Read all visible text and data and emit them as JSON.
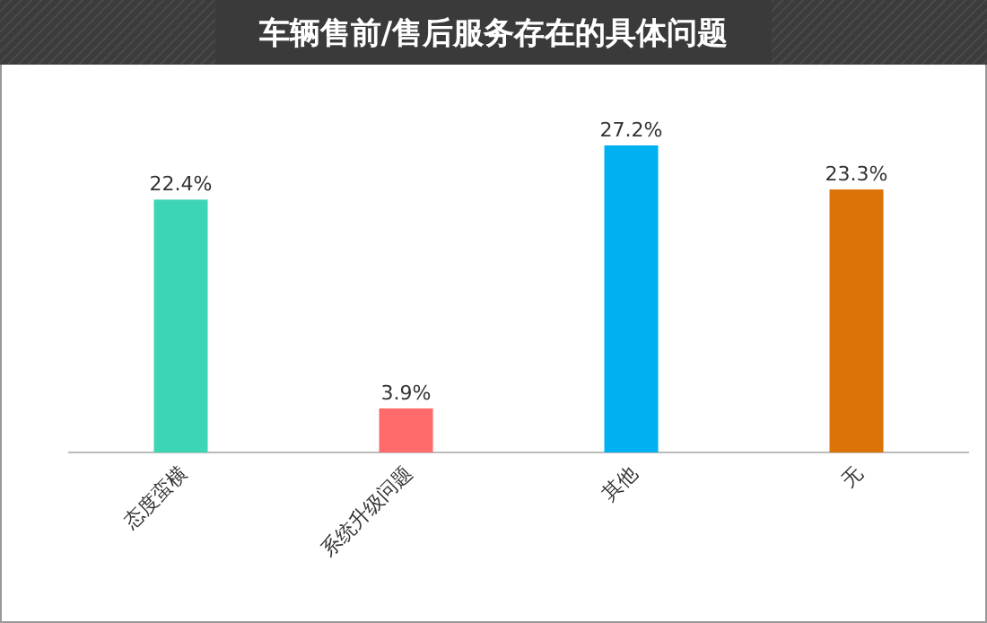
{
  "chart_data": {
    "type": "bar",
    "title": "车辆售前/售后服务存在的具体问题",
    "categories": [
      "态度蛮横",
      "系统升级问题",
      "其他",
      "无"
    ],
    "values": [
      22.4,
      3.9,
      27.2,
      23.3
    ],
    "colors": [
      "#3dd6b5",
      "#ff6b6b",
      "#00b0f0",
      "#db7308"
    ],
    "value_labels": [
      "22.4%",
      "3.9%",
      "27.2%",
      "23.3%"
    ]
  }
}
